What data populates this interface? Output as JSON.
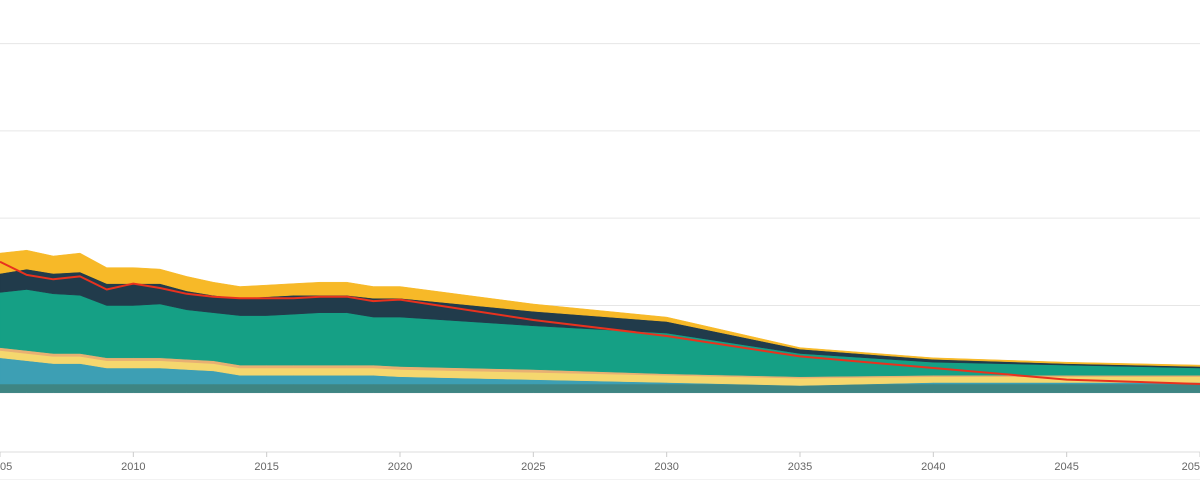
{
  "chart_data": {
    "type": "area",
    "stacked": true,
    "x": [
      2005,
      2006,
      2007,
      2008,
      2009,
      2010,
      2011,
      2012,
      2013,
      2014,
      2015,
      2016,
      2017,
      2018,
      2019,
      2020,
      2025,
      2030,
      2035,
      2040,
      2045,
      2050
    ],
    "xlim": [
      2005,
      2050
    ],
    "ylim": [
      -6,
      27
    ],
    "x_ticks": [
      "05",
      "2010",
      "2015",
      "2020",
      "2025",
      "2030",
      "2035",
      "2040",
      "2045",
      "205"
    ],
    "gridlines": true,
    "grid_y_values": [
      -6,
      0,
      6,
      12,
      18,
      24
    ],
    "legend": "none",
    "series": [
      {
        "color": "#3e8583",
        "values": [
          0.6,
          0.6,
          0.6,
          0.6,
          0.6,
          0.6,
          0.6,
          0.6,
          0.6,
          0.6,
          0.6,
          0.6,
          0.6,
          0.6,
          0.6,
          0.6,
          0.6,
          0.6,
          0.6,
          0.6,
          0.6,
          0.6
        ]
      },
      {
        "color": "#3d9fb4",
        "values": [
          1.8,
          1.6,
          1.4,
          1.4,
          1.1,
          1.1,
          1.1,
          1.0,
          0.9,
          0.6,
          0.6,
          0.6,
          0.6,
          0.6,
          0.6,
          0.5,
          0.3,
          0.1,
          -0.1,
          0.1,
          0.1,
          0.1
        ]
      },
      {
        "color": "#f5d76e",
        "values": [
          0.5,
          0.5,
          0.5,
          0.5,
          0.5,
          0.5,
          0.5,
          0.5,
          0.5,
          0.5,
          0.5,
          0.5,
          0.5,
          0.5,
          0.5,
          0.5,
          0.5,
          0.5,
          0.5,
          0.4,
          0.4,
          0.4
        ]
      },
      {
        "color": "#e8b072",
        "values": [
          0.2,
          0.2,
          0.2,
          0.2,
          0.2,
          0.2,
          0.2,
          0.2,
          0.2,
          0.2,
          0.2,
          0.2,
          0.2,
          0.2,
          0.2,
          0.2,
          0.2,
          0.1,
          0.1,
          0.1,
          0.1,
          0.1
        ]
      },
      {
        "color": "#15a085",
        "values": [
          3.8,
          4.2,
          4.1,
          4.0,
          3.6,
          3.6,
          3.7,
          3.4,
          3.3,
          3.4,
          3.4,
          3.5,
          3.6,
          3.6,
          3.3,
          3.4,
          3.0,
          2.8,
          1.6,
          0.9,
          0.7,
          0.5
        ]
      },
      {
        "color": "#213b4b",
        "values": [
          1.3,
          1.4,
          1.4,
          1.6,
          1.5,
          1.5,
          1.4,
          1.3,
          1.2,
          1.2,
          1.3,
          1.3,
          1.2,
          1.2,
          1.3,
          1.3,
          1.0,
          0.8,
          0.3,
          0.2,
          0.1,
          0.1
        ]
      },
      {
        "color": "#f7b928",
        "values": [
          1.4,
          1.3,
          1.2,
          1.3,
          1.1,
          1.1,
          1.0,
          1.0,
          0.9,
          0.8,
          0.8,
          0.8,
          0.9,
          0.9,
          0.8,
          0.8,
          0.5,
          0.3,
          0.1,
          0.1,
          0.1,
          0.1
        ]
      }
    ],
    "line": {
      "color": "#e8321e",
      "x": [
        2005,
        2006,
        2007,
        2008,
        2009,
        2010,
        2011,
        2012,
        2013,
        2014,
        2015,
        2016,
        2017,
        2018,
        2019,
        2020,
        2025,
        2030,
        2035,
        2040,
        2045,
        2050
      ],
      "values": [
        9.0,
        8.1,
        7.8,
        8.0,
        7.1,
        7.5,
        7.2,
        6.8,
        6.6,
        6.5,
        6.5,
        6.5,
        6.6,
        6.6,
        6.3,
        6.4,
        5.0,
        3.9,
        2.5,
        1.7,
        0.9,
        0.6
      ]
    }
  }
}
